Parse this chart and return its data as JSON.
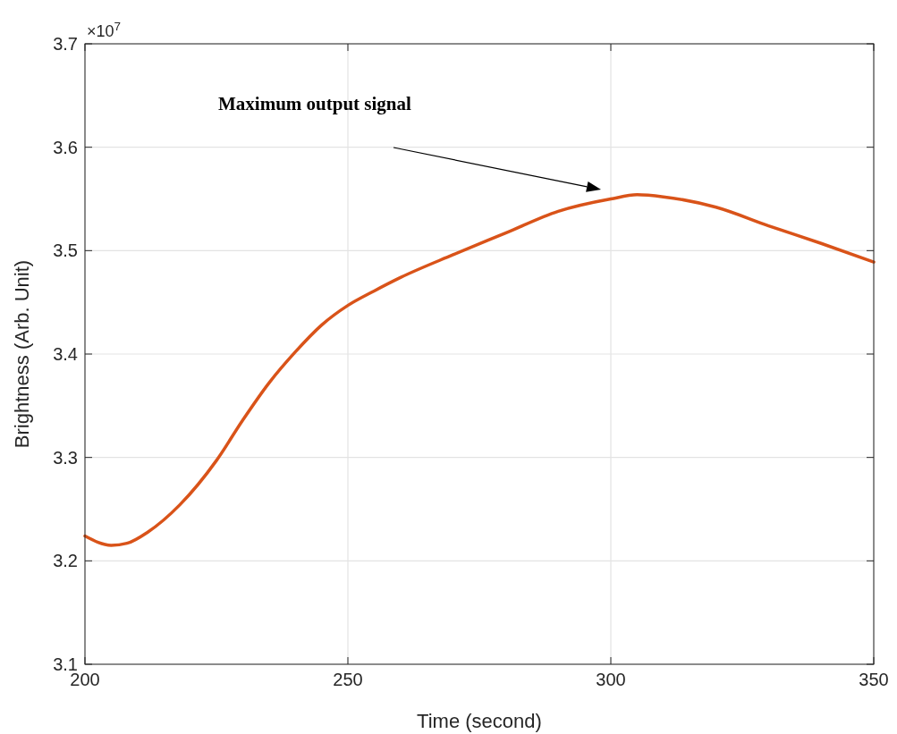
{
  "chart_data": {
    "type": "line",
    "xlabel": "Time (second)",
    "ylabel": "Brightness (Arb. Unit)",
    "x": [
      200,
      205,
      208,
      212,
      218,
      225,
      230,
      235,
      240,
      245,
      250,
      255,
      260,
      270,
      280,
      290,
      300,
      305,
      310,
      320,
      330,
      340,
      350
    ],
    "series": [
      {
        "color": "#d95319",
        "values": [
          3.224,
          3.215,
          3.217,
          3.228,
          3.254,
          3.297,
          3.336,
          3.372,
          3.402,
          3.428,
          3.447,
          3.461,
          3.474,
          3.496,
          3.517,
          3.538,
          3.55,
          3.554,
          3.552,
          3.542,
          3.524,
          3.507,
          3.489
        ]
      }
    ],
    "xlim": [
      200,
      350
    ],
    "xticks": [
      200,
      250,
      300,
      350
    ],
    "ylim": [
      3.1,
      3.7
    ],
    "yticks": [
      3.1,
      3.2,
      3.3,
      3.4,
      3.5,
      3.6,
      3.7
    ],
    "grid": true,
    "marker": "none",
    "line_style": "solid",
    "annotations": [
      "×10$^{7}$",
      "Maximum output signal"
    ]
  }
}
